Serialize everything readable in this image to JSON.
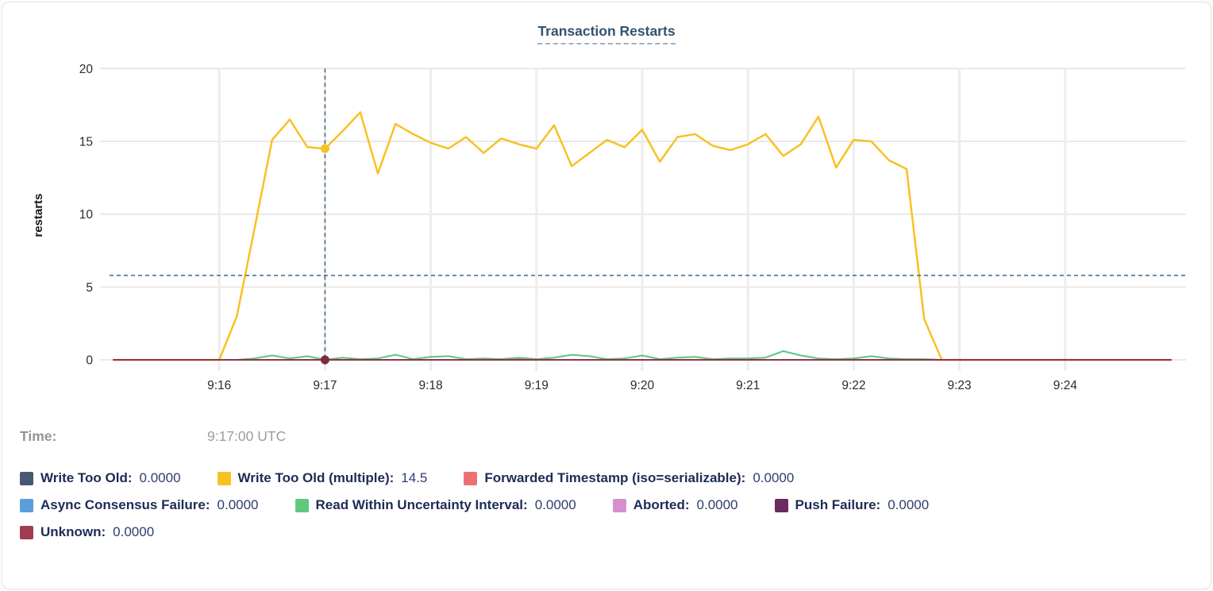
{
  "title": "Transaction Restarts",
  "ylabel": "restarts",
  "time_row": {
    "label": "Time:",
    "value": "9:17:00 UTC"
  },
  "crosshair": {
    "time": "9:17:00",
    "hline_value": 5.8,
    "color": "#4c7191"
  },
  "hover_dots": [
    {
      "series": "Write Too Old (multiple)",
      "time": "9:17:00",
      "value": 14.5,
      "color": "#f8c123"
    },
    {
      "series": "Unknown",
      "time": "9:17:00",
      "value": 0,
      "color": "#7e2c3e"
    }
  ],
  "chart_data": {
    "type": "line",
    "title": "Transaction Restarts",
    "xlabel": "",
    "ylabel": "restarts",
    "ylim": [
      0,
      20
    ],
    "yticks": [
      0,
      5,
      10,
      15,
      20
    ],
    "x_domain": [
      "9:15:00",
      "9:25:00"
    ],
    "xticks": [
      {
        "label": "9:16",
        "time": "9:16:00"
      },
      {
        "label": "9:17",
        "time": "9:17:00"
      },
      {
        "label": "9:18",
        "time": "9:18:00"
      },
      {
        "label": "9:19",
        "time": "9:19:00"
      },
      {
        "label": "9:20",
        "time": "9:20:00"
      },
      {
        "label": "9:21",
        "time": "9:21:00"
      },
      {
        "label": "9:22",
        "time": "9:22:00"
      },
      {
        "label": "9:23",
        "time": "9:23:00"
      },
      {
        "label": "9:24",
        "time": "9:24:00"
      }
    ],
    "grid": true,
    "legend_position": "bottom",
    "series": [
      {
        "name": "Write Too Old",
        "color": "#475872",
        "width": 1.5,
        "points": [
          [
            "9:15:00",
            0
          ],
          [
            "9:25:00",
            0
          ]
        ]
      },
      {
        "name": "Async Consensus Failure",
        "color": "#5c9ed9",
        "width": 1.5,
        "points": [
          [
            "9:15:00",
            0
          ],
          [
            "9:25:00",
            0
          ]
        ]
      },
      {
        "name": "Aborted",
        "color": "#d78fce",
        "width": 1.5,
        "points": [
          [
            "9:15:00",
            0
          ],
          [
            "9:25:00",
            0
          ]
        ]
      },
      {
        "name": "Push Failure",
        "color": "#6a2b5d",
        "width": 1.5,
        "points": [
          [
            "9:15:00",
            0
          ],
          [
            "9:25:00",
            0
          ]
        ]
      },
      {
        "name": "Forwarded Timestamp (iso=serializable)",
        "color": "#ec7173",
        "width": 2,
        "points": [
          [
            "9:15:00",
            0
          ],
          [
            "9:18:30",
            0
          ],
          [
            "9:18:40",
            0.05
          ],
          [
            "9:18:50",
            0.1
          ],
          [
            "9:19:00",
            0.05
          ],
          [
            "9:19:10",
            0
          ],
          [
            "9:25:00",
            0
          ]
        ]
      },
      {
        "name": "Read Within Uncertainty Interval",
        "color": "#5dc57c",
        "width": 2,
        "points": [
          [
            "9:15:00",
            0
          ],
          [
            "9:15:10",
            0
          ],
          [
            "9:15:20",
            0
          ],
          [
            "9:15:30",
            0
          ],
          [
            "9:15:40",
            0
          ],
          [
            "9:15:50",
            0
          ],
          [
            "9:16:00",
            0
          ],
          [
            "9:16:10",
            0
          ],
          [
            "9:16:20",
            0.1
          ],
          [
            "9:16:30",
            0.3
          ],
          [
            "9:16:40",
            0.1
          ],
          [
            "9:16:50",
            0.25
          ],
          [
            "9:17:00",
            0
          ],
          [
            "9:17:10",
            0.15
          ],
          [
            "9:17:20",
            0.05
          ],
          [
            "9:17:30",
            0.1
          ],
          [
            "9:17:40",
            0.35
          ],
          [
            "9:17:50",
            0.05
          ],
          [
            "9:18:00",
            0.2
          ],
          [
            "9:18:10",
            0.25
          ],
          [
            "9:18:20",
            0.05
          ],
          [
            "9:18:30",
            0.1
          ],
          [
            "9:18:40",
            0.05
          ],
          [
            "9:18:50",
            0.15
          ],
          [
            "9:19:00",
            0.05
          ],
          [
            "9:19:10",
            0.15
          ],
          [
            "9:19:20",
            0.35
          ],
          [
            "9:19:30",
            0.25
          ],
          [
            "9:19:40",
            0.05
          ],
          [
            "9:19:50",
            0.1
          ],
          [
            "9:20:00",
            0.3
          ],
          [
            "9:20:10",
            0.05
          ],
          [
            "9:20:20",
            0.15
          ],
          [
            "9:20:30",
            0.2
          ],
          [
            "9:20:40",
            0.05
          ],
          [
            "9:20:50",
            0.1
          ],
          [
            "9:21:00",
            0.1
          ],
          [
            "9:21:10",
            0.15
          ],
          [
            "9:21:20",
            0.6
          ],
          [
            "9:21:30",
            0.3
          ],
          [
            "9:21:40",
            0.1
          ],
          [
            "9:21:50",
            0.05
          ],
          [
            "9:22:00",
            0.1
          ],
          [
            "9:22:10",
            0.25
          ],
          [
            "9:22:20",
            0.1
          ],
          [
            "9:22:30",
            0.05
          ],
          [
            "9:22:40",
            0.05
          ],
          [
            "9:22:50",
            0
          ],
          [
            "9:23:00",
            0
          ],
          [
            "9:23:10",
            0
          ],
          [
            "9:23:20",
            0
          ],
          [
            "9:23:30",
            0
          ],
          [
            "9:23:40",
            0
          ],
          [
            "9:23:50",
            0
          ],
          [
            "9:24:00",
            0
          ],
          [
            "9:24:10",
            0
          ],
          [
            "9:24:20",
            0
          ],
          [
            "9:24:30",
            0
          ],
          [
            "9:24:40",
            0
          ],
          [
            "9:24:50",
            0
          ],
          [
            "9:25:00",
            0
          ]
        ]
      },
      {
        "name": "Write Too Old (multiple)",
        "color": "#f8c123",
        "width": 2.5,
        "points": [
          [
            "9:15:00",
            0
          ],
          [
            "9:15:10",
            0
          ],
          [
            "9:15:20",
            0
          ],
          [
            "9:15:30",
            0
          ],
          [
            "9:15:40",
            0
          ],
          [
            "9:15:50",
            0
          ],
          [
            "9:16:00",
            0
          ],
          [
            "9:16:10",
            3
          ],
          [
            "9:16:20",
            9
          ],
          [
            "9:16:30",
            15.1
          ],
          [
            "9:16:40",
            16.5
          ],
          [
            "9:16:50",
            14.6
          ],
          [
            "9:17:00",
            14.5
          ],
          [
            "9:17:10",
            15.7
          ],
          [
            "9:17:20",
            17
          ],
          [
            "9:17:30",
            12.8
          ],
          [
            "9:17:40",
            16.2
          ],
          [
            "9:17:50",
            15.5
          ],
          [
            "9:18:00",
            14.9
          ],
          [
            "9:18:10",
            14.5
          ],
          [
            "9:18:20",
            15.3
          ],
          [
            "9:18:30",
            14.2
          ],
          [
            "9:18:40",
            15.2
          ],
          [
            "9:18:50",
            14.8
          ],
          [
            "9:19:00",
            14.5
          ],
          [
            "9:19:10",
            16.1
          ],
          [
            "9:19:20",
            13.3
          ],
          [
            "9:19:30",
            14.2
          ],
          [
            "9:19:40",
            15.1
          ],
          [
            "9:19:50",
            14.6
          ],
          [
            "9:20:00",
            15.8
          ],
          [
            "9:20:10",
            13.6
          ],
          [
            "9:20:20",
            15.3
          ],
          [
            "9:20:30",
            15.5
          ],
          [
            "9:20:40",
            14.7
          ],
          [
            "9:20:50",
            14.4
          ],
          [
            "9:21:00",
            14.8
          ],
          [
            "9:21:10",
            15.5
          ],
          [
            "9:21:20",
            14
          ],
          [
            "9:21:30",
            14.8
          ],
          [
            "9:21:40",
            16.7
          ],
          [
            "9:21:50",
            13.2
          ],
          [
            "9:22:00",
            15.1
          ],
          [
            "9:22:10",
            15
          ],
          [
            "9:22:20",
            13.7
          ],
          [
            "9:22:30",
            13.1
          ],
          [
            "9:22:40",
            2.8
          ],
          [
            "9:22:50",
            0
          ],
          [
            "9:23:00",
            0
          ],
          [
            "9:23:10",
            0
          ],
          [
            "9:23:20",
            0
          ],
          [
            "9:23:30",
            0
          ],
          [
            "9:23:40",
            0
          ],
          [
            "9:23:50",
            0
          ],
          [
            "9:24:00",
            0
          ],
          [
            "9:24:10",
            0
          ],
          [
            "9:24:20",
            0
          ],
          [
            "9:24:30",
            0
          ],
          [
            "9:24:40",
            0
          ],
          [
            "9:24:50",
            0
          ],
          [
            "9:25:00",
            0
          ]
        ]
      },
      {
        "name": "Unknown",
        "color": "#93334a",
        "width": 2,
        "points": [
          [
            "9:15:00",
            0
          ],
          [
            "9:25:00",
            0
          ]
        ]
      }
    ]
  },
  "legend": {
    "rows": [
      [
        {
          "label": "Write Too Old:",
          "value": "0.0000",
          "color": "#475872"
        },
        {
          "label": "Write Too Old (multiple):",
          "value": "14.5",
          "color": "#f8c123"
        },
        {
          "label": "Forwarded Timestamp (iso=serializable):",
          "value": "0.0000",
          "color": "#ed7173"
        }
      ],
      [
        {
          "label": "Async Consensus Failure:",
          "value": "0.0000",
          "color": "#5c9ed9"
        },
        {
          "label": "Read Within Uncertainty Interval:",
          "value": "0.0000",
          "color": "#60c87f"
        },
        {
          "label": "Aborted:",
          "value": "0.0000",
          "color": "#d78fce"
        },
        {
          "label": "Push Failure:",
          "value": "0.0000",
          "color": "#6a2b5d"
        }
      ],
      [
        {
          "label": "Unknown:",
          "value": "0.0000",
          "color": "#a13d52"
        }
      ]
    ]
  }
}
